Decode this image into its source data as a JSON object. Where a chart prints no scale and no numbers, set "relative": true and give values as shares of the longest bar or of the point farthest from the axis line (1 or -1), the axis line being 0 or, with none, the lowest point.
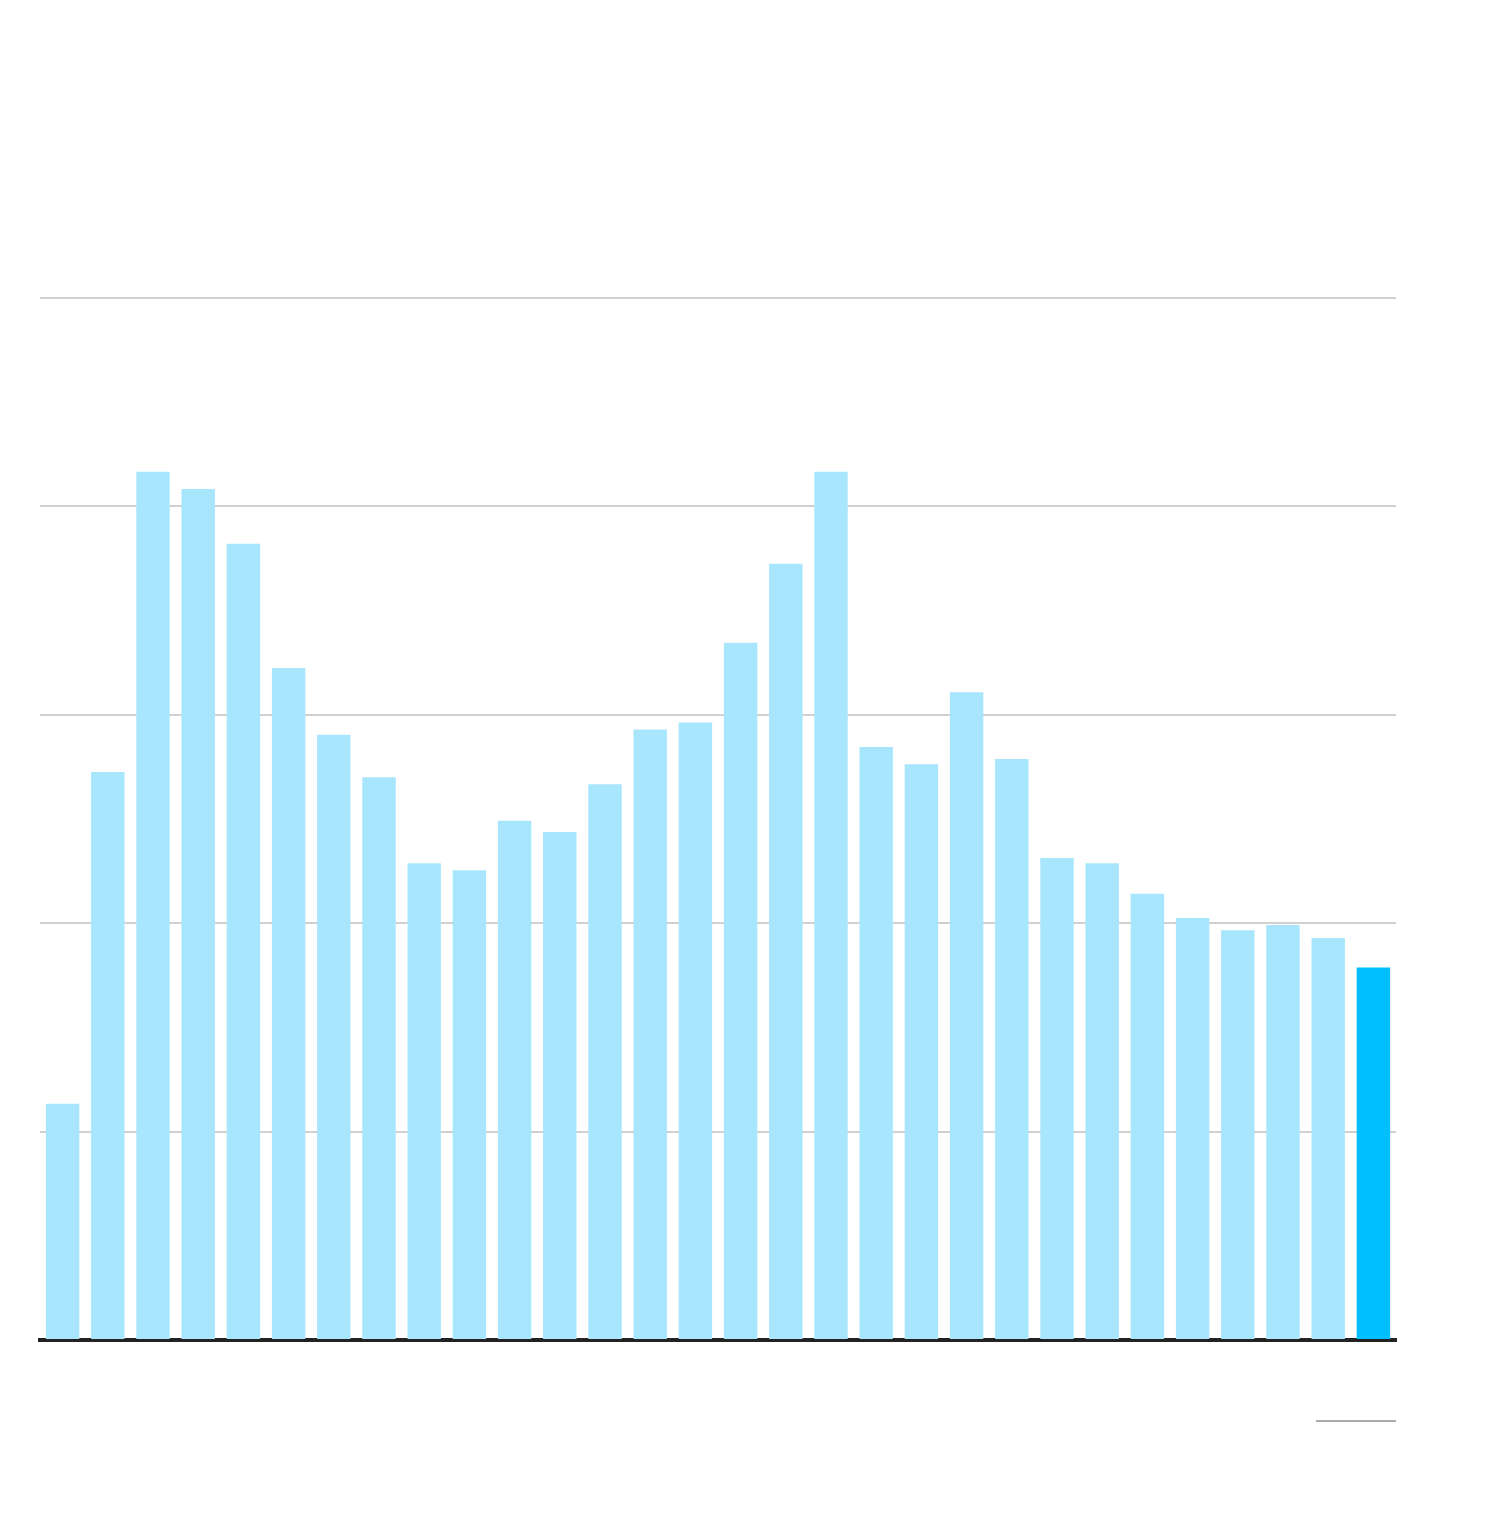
{
  "chart_data": {
    "type": "bar",
    "relative": true,
    "grid": "y",
    "categories": [
      null,
      null,
      null,
      null,
      null,
      null,
      null,
      null,
      null,
      null,
      null,
      null,
      null,
      null,
      null,
      null,
      null,
      null,
      null,
      null,
      null,
      null,
      null,
      null,
      null,
      null,
      null,
      null,
      null,
      null
    ],
    "values": [
      0.272,
      0.654,
      1,
      0.98,
      0.917,
      0.774,
      0.697,
      0.648,
      0.549,
      0.541,
      0.598,
      0.585,
      0.64,
      0.703,
      0.711,
      0.803,
      0.894,
      1,
      0.683,
      0.663,
      0.746,
      0.669,
      0.555,
      0.549,
      0.514,
      0.486,
      0.472,
      0.478,
      0.463,
      0.429
    ],
    "colors": [
      "#a8e6fd",
      "#a8e6fd",
      "#a8e6fd",
      "#a8e6fd",
      "#a8e6fd",
      "#a8e6fd",
      "#a8e6fd",
      "#a8e6fd",
      "#a8e6fd",
      "#a8e6fd",
      "#a8e6fd",
      "#a8e6fd",
      "#a8e6fd",
      "#a8e6fd",
      "#a8e6fd",
      "#a8e6fd",
      "#a8e6fd",
      "#a8e6fd",
      "#a8e6fd",
      "#a8e6fd",
      "#a8e6fd",
      "#a8e6fd",
      "#a8e6fd",
      "#a8e6fd",
      "#a8e6fd",
      "#a8e6fd",
      "#a8e6fd",
      "#a8e6fd",
      "#a8e6fd",
      "#00bfff"
    ]
  }
}
